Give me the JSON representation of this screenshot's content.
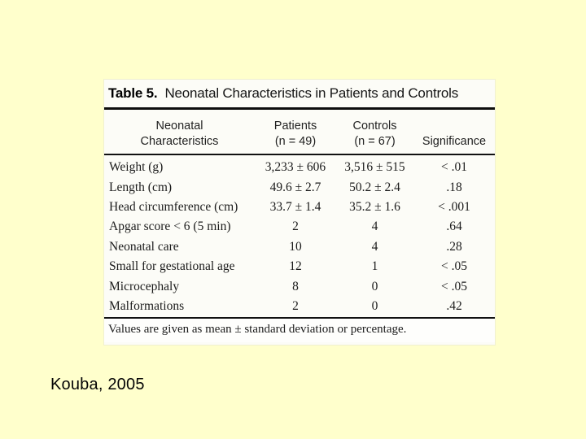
{
  "slide": {
    "background_color": "#FFFFCC",
    "citation": "Kouba, 2005"
  },
  "table": {
    "title_label": "Table 5.",
    "title_text": "Neonatal Characteristics in Patients and Controls",
    "headers": {
      "characteristics_line1": "Neonatal",
      "characteristics_line2": "Characteristics",
      "patients_line1": "Patients",
      "patients_line2": "(n = 49)",
      "controls_line1": "Controls",
      "controls_line2": "(n = 67)",
      "significance": "Significance"
    },
    "rows": [
      {
        "label": "Weight (g)",
        "patients": "3,233 ± 606",
        "controls": "3,516 ± 515",
        "significance": "< .01"
      },
      {
        "label": "Length (cm)",
        "patients": "49.6 ± 2.7",
        "controls": "50.2 ± 2.4",
        "significance": ".18"
      },
      {
        "label": "Head circumference (cm)",
        "patients": "33.7 ± 1.4",
        "controls": "35.2 ± 1.6",
        "significance": "< .001"
      },
      {
        "label": "Apgar score < 6 (5 min)",
        "patients": "2",
        "controls": "4",
        "significance": ".64"
      },
      {
        "label": "Neonatal care",
        "patients": "10",
        "controls": "4",
        "significance": ".28"
      },
      {
        "label": "Small for gestational age",
        "patients": "12",
        "controls": "1",
        "significance": "< .05"
      },
      {
        "label": "Microcephaly",
        "patients": "8",
        "controls": "0",
        "significance": "< .05"
      },
      {
        "label": "Malformations",
        "patients": "2",
        "controls": "0",
        "significance": ".42"
      }
    ],
    "footnote": "Values are given as mean ± standard deviation or percentage."
  }
}
